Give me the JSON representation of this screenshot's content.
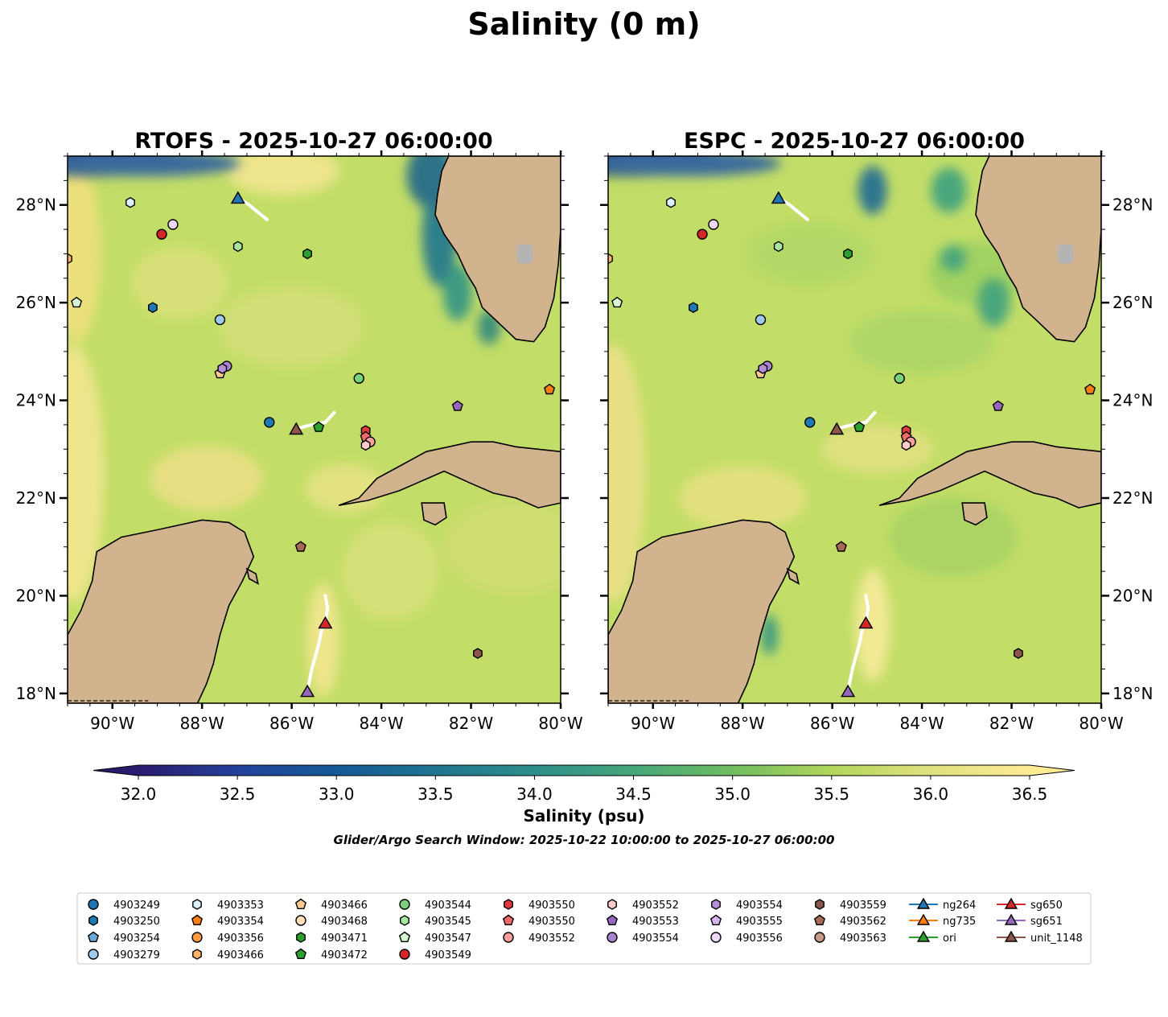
{
  "chart_data": {
    "type": "map",
    "title": "Salinity (0 m)",
    "panels": [
      {
        "name": "rtofs",
        "title": "RTOFS - 2025-10-27 06:00:00"
      },
      {
        "name": "espc",
        "title": "ESPC - 2025-10-27 06:00:00"
      }
    ],
    "lon_range": [
      -91.0,
      -80.0
    ],
    "lat_range": [
      17.8,
      29.0
    ],
    "lon_ticks": [
      -90,
      -88,
      -86,
      -84,
      -82,
      -80
    ],
    "lon_tick_labels": [
      "90°W",
      "88°W",
      "86°W",
      "84°W",
      "82°W",
      "80°W"
    ],
    "lat_ticks": [
      18,
      20,
      22,
      24,
      26,
      28
    ],
    "lat_tick_labels": [
      "18°N",
      "20°N",
      "22°N",
      "24°N",
      "26°N",
      "28°N"
    ],
    "colorbar": {
      "label": "Salinity (psu)",
      "range": [
        32.0,
        36.5
      ],
      "extend": "both",
      "ticks": [
        32.0,
        32.5,
        33.0,
        33.5,
        34.0,
        34.5,
        35.0,
        35.5,
        36.0,
        36.5
      ],
      "tick_labels": [
        "32.0",
        "32.5",
        "33.0",
        "33.5",
        "34.0",
        "34.5",
        "35.0",
        "35.5",
        "36.0",
        "36.5"
      ],
      "colormap_stops": [
        "#2a1a6e",
        "#24409b",
        "#145a96",
        "#1f7590",
        "#2d8f8a",
        "#45a77a",
        "#6fbd60",
        "#b2d65a",
        "#e0e27f",
        "#fdeb94"
      ]
    },
    "search_window": "Glider/Argo Search Window: 2025-10-22 10:00:00 to 2025-10-27 06:00:00",
    "platforms": [
      {
        "id": "4903249",
        "marker": "circle",
        "color": "#1f77b4",
        "lon": -86.5,
        "lat": 23.55
      },
      {
        "id": "4903250",
        "marker": "hexagon",
        "color": "#1f77b4",
        "lon": -89.1,
        "lat": 25.9
      },
      {
        "id": "4903254",
        "marker": "pentagon",
        "color": "#6ba8d9",
        "lon": null,
        "lat": null
      },
      {
        "id": "4903279",
        "marker": "circle",
        "color": "#9ecae9",
        "lon": -87.6,
        "lat": 25.65
      },
      {
        "id": "4903353",
        "marker": "hexagon",
        "color": "#dbf0fb",
        "lon": -89.6,
        "lat": 28.05
      },
      {
        "id": "4903354",
        "marker": "pentagon",
        "color": "#ff7f0e",
        "lon": -80.25,
        "lat": 24.22
      },
      {
        "id": "4903356",
        "marker": "circle",
        "color": "#ff9a40",
        "lon": null,
        "lat": null
      },
      {
        "id": "4903466",
        "marker": "hexagon",
        "color": "#ffb366",
        "lon": -91.0,
        "lat": 26.9
      },
      {
        "id": "4903466",
        "marker": "pentagon",
        "color": "#ffc98f",
        "lon": -87.6,
        "lat": 24.55
      },
      {
        "id": "4903468",
        "marker": "circle",
        "color": "#ffdfb8",
        "lon": null,
        "lat": null
      },
      {
        "id": "4903471",
        "marker": "hexagon",
        "color": "#2ca02c",
        "lon": -85.65,
        "lat": 27.0
      },
      {
        "id": "4903472",
        "marker": "pentagon",
        "color": "#2ca02c",
        "lon": -85.4,
        "lat": 23.45
      },
      {
        "id": "4903544",
        "marker": "circle",
        "color": "#7bd17b",
        "lon": -84.5,
        "lat": 24.45
      },
      {
        "id": "4903545",
        "marker": "hexagon",
        "color": "#a8e6a0",
        "lon": -87.2,
        "lat": 27.15
      },
      {
        "id": "4903547",
        "marker": "pentagon",
        "color": "#d6f5d1",
        "lon": -90.8,
        "lat": 26.0
      },
      {
        "id": "4903549",
        "marker": "circle",
        "color": "#d62728",
        "lon": -88.9,
        "lat": 27.4
      },
      {
        "id": "4903550",
        "marker": "hexagon",
        "color": "#e03a3c",
        "lon": -84.35,
        "lat": 23.38
      },
      {
        "id": "4903550",
        "marker": "pentagon",
        "color": "#f26b6b",
        "lon": -84.35,
        "lat": 23.25
      },
      {
        "id": "4903552",
        "marker": "circle",
        "color": "#ff9e9e",
        "lon": -84.25,
        "lat": 23.15
      },
      {
        "id": "4903552",
        "marker": "hexagon",
        "color": "#ffcccb",
        "lon": -84.35,
        "lat": 23.08
      },
      {
        "id": "4903553",
        "marker": "pentagon",
        "color": "#9467bd",
        "lon": -82.3,
        "lat": 23.88
      },
      {
        "id": "4903554",
        "marker": "circle",
        "color": "#a883cf",
        "lon": -87.45,
        "lat": 24.7
      },
      {
        "id": "4903554",
        "marker": "hexagon",
        "color": "#b48ed8",
        "lon": -87.55,
        "lat": 24.65
      },
      {
        "id": "4903555",
        "marker": "pentagon",
        "color": "#d4b5ef",
        "lon": null,
        "lat": null
      },
      {
        "id": "4903556",
        "marker": "circle",
        "color": "#eed6fb",
        "lon": -88.65,
        "lat": 27.6
      },
      {
        "id": "4903559",
        "marker": "hexagon",
        "color": "#8c564b",
        "lon": -81.85,
        "lat": 18.82
      },
      {
        "id": "4903562",
        "marker": "pentagon",
        "color": "#a66b58",
        "lon": -85.8,
        "lat": 21.0
      },
      {
        "id": "4903563",
        "marker": "circle",
        "color": "#c49a86",
        "lon": null,
        "lat": null
      }
    ],
    "gliders": [
      {
        "id": "ng264",
        "color": "#1f77b4",
        "lon": -87.2,
        "lat": 28.15,
        "track": [
          [
            -87.2,
            28.15
          ],
          [
            -86.95,
            28.0
          ],
          [
            -86.75,
            27.85
          ],
          [
            -86.55,
            27.7
          ]
        ]
      },
      {
        "id": "ng735",
        "color": "#ff7f0e",
        "lon": null,
        "lat": null,
        "track": []
      },
      {
        "id": "ori",
        "color": "#2ca02c",
        "lon": null,
        "lat": null,
        "track": []
      },
      {
        "id": "sg650",
        "color": "#d62728",
        "lon": -85.25,
        "lat": 19.45,
        "track": [
          [
            -85.25,
            19.45
          ],
          [
            -85.2,
            19.75
          ],
          [
            -85.25,
            20.0
          ]
        ]
      },
      {
        "id": "sg651",
        "color": "#9467bd",
        "lon": -85.65,
        "lat": 18.05,
        "track": [
          [
            -85.65,
            18.05
          ],
          [
            -85.55,
            18.5
          ],
          [
            -85.4,
            19.0
          ],
          [
            -85.3,
            19.45
          ]
        ]
      },
      {
        "id": "unit_1148",
        "color": "#8c564b",
        "lon": -85.9,
        "lat": 23.42,
        "track": [
          [
            -85.9,
            23.42
          ],
          [
            -85.55,
            23.5
          ],
          [
            -85.25,
            23.55
          ],
          [
            -85.05,
            23.75
          ]
        ]
      }
    ]
  },
  "legend": {
    "columns": [
      [
        "4903249",
        "4903250",
        "4903254",
        "4903279"
      ],
      [
        "4903353",
        "4903354",
        "4903356",
        "4903466"
      ],
      [
        "4903466",
        "4903468",
        "4903471",
        "4903472"
      ],
      [
        "4903544",
        "4903545",
        "4903547",
        "4903549"
      ],
      [
        "4903550",
        "4903550",
        "4903552"
      ],
      [
        "4903552",
        "4903553",
        "4903554"
      ],
      [
        "4903554",
        "4903555",
        "4903556"
      ],
      [
        "4903559",
        "4903562",
        "4903563"
      ],
      [
        "ng264",
        "ng735",
        "ori"
      ],
      [
        "sg650",
        "sg651",
        "unit_1148"
      ]
    ]
  }
}
